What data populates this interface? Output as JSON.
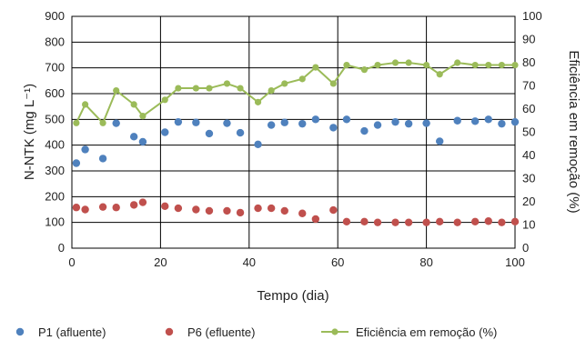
{
  "chart_data": {
    "type": "scatter",
    "xlabel": "Tempo (dia)",
    "ylabel_left": "N-NTK (mg L⁻¹)",
    "ylabel_right": "Eficiência em remoção (%)",
    "xlim": [
      0,
      100
    ],
    "ylim_left": [
      0,
      900
    ],
    "ylim_right": [
      0,
      100
    ],
    "x_ticks": [
      "0",
      "20",
      "40",
      "60",
      "80",
      "100"
    ],
    "y_left_ticks": [
      "0",
      "100",
      "200",
      "300",
      "400",
      "500",
      "600",
      "700",
      "800",
      "900"
    ],
    "y_right_ticks": [
      "0",
      "10",
      "20",
      "30",
      "40",
      "50",
      "60",
      "70",
      "80",
      "90",
      "100"
    ],
    "grid": true,
    "legend_position": "bottom",
    "series": [
      {
        "name": "P1 (afluente)",
        "axis": "left",
        "style": "markers",
        "color": "#4f81bd",
        "points": [
          [
            1,
            330
          ],
          [
            3,
            383
          ],
          [
            7,
            348
          ],
          [
            10,
            485
          ],
          [
            14,
            433
          ],
          [
            16,
            413
          ],
          [
            21,
            450
          ],
          [
            24,
            490
          ],
          [
            28,
            488
          ],
          [
            31,
            445
          ],
          [
            35,
            485
          ],
          [
            38,
            448
          ],
          [
            42,
            403
          ],
          [
            45,
            478
          ],
          [
            48,
            488
          ],
          [
            52,
            483
          ],
          [
            55,
            500
          ],
          [
            59,
            468
          ],
          [
            62,
            500
          ],
          [
            66,
            455
          ],
          [
            69,
            478
          ],
          [
            73,
            490
          ],
          [
            76,
            483
          ],
          [
            80,
            485
          ],
          [
            83,
            415
          ],
          [
            87,
            495
          ],
          [
            91,
            493
          ],
          [
            94,
            500
          ],
          [
            97,
            483
          ],
          [
            100,
            490
          ]
        ]
      },
      {
        "name": "P6 (efluente)",
        "axis": "left",
        "style": "markers",
        "color": "#c0504d",
        "points": [
          [
            1,
            158
          ],
          [
            3,
            150
          ],
          [
            7,
            160
          ],
          [
            10,
            158
          ],
          [
            14,
            168
          ],
          [
            16,
            178
          ],
          [
            21,
            163
          ],
          [
            24,
            155
          ],
          [
            28,
            150
          ],
          [
            31,
            145
          ],
          [
            35,
            145
          ],
          [
            38,
            138
          ],
          [
            42,
            155
          ],
          [
            45,
            155
          ],
          [
            48,
            145
          ],
          [
            52,
            135
          ],
          [
            55,
            113
          ],
          [
            59,
            148
          ],
          [
            62,
            103
          ],
          [
            66,
            103
          ],
          [
            69,
            100
          ],
          [
            73,
            100
          ],
          [
            76,
            100
          ],
          [
            80,
            100
          ],
          [
            83,
            103
          ],
          [
            87,
            100
          ],
          [
            91,
            103
          ],
          [
            94,
            105
          ],
          [
            97,
            100
          ],
          [
            100,
            103
          ]
        ]
      },
      {
        "name": "Eficiência em remoção (%)",
        "axis": "right",
        "style": "line-markers",
        "color": "#9bbb59",
        "points": [
          [
            1,
            54
          ],
          [
            3,
            62
          ],
          [
            7,
            54
          ],
          [
            10,
            68
          ],
          [
            14,
            62
          ],
          [
            16,
            57
          ],
          [
            21,
            64
          ],
          [
            24,
            69
          ],
          [
            28,
            69
          ],
          [
            31,
            69
          ],
          [
            35,
            71
          ],
          [
            38,
            69
          ],
          [
            42,
            63
          ],
          [
            45,
            68
          ],
          [
            48,
            71
          ],
          [
            52,
            73
          ],
          [
            55,
            78
          ],
          [
            59,
            71
          ],
          [
            62,
            79
          ],
          [
            66,
            77
          ],
          [
            69,
            79
          ],
          [
            73,
            80
          ],
          [
            76,
            80
          ],
          [
            80,
            79
          ],
          [
            83,
            75
          ],
          [
            87,
            80
          ],
          [
            91,
            79
          ],
          [
            94,
            79
          ],
          [
            97,
            79
          ],
          [
            100,
            79
          ]
        ]
      }
    ]
  }
}
